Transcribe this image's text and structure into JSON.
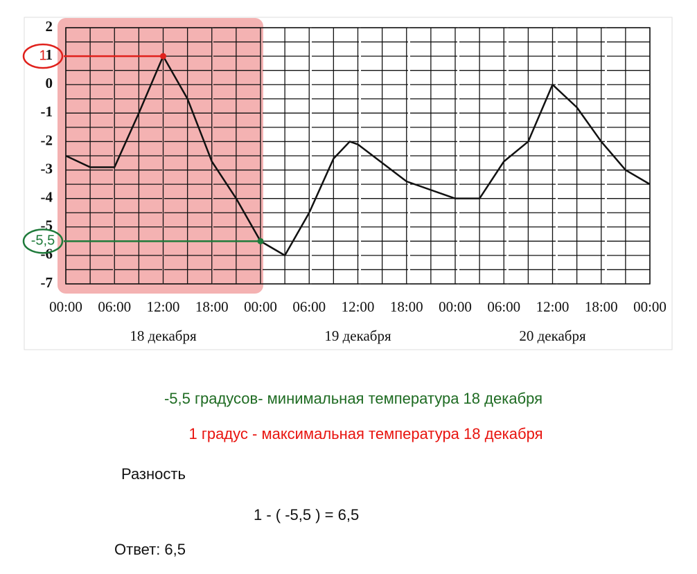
{
  "chart_data": {
    "type": "line",
    "x": [
      0,
      3,
      6,
      9,
      12,
      15,
      18,
      21,
      24,
      27,
      30,
      33,
      35,
      36,
      42,
      48,
      51,
      54,
      57,
      60,
      63,
      66,
      69,
      72
    ],
    "series": [
      {
        "color": "#111111",
        "values": [
          -2.5,
          -2.9,
          -2.9,
          -1,
          1,
          -0.5,
          -2.7,
          -4,
          -5.5,
          -6,
          -4.5,
          -2.6,
          -2,
          -2.1,
          -3.4,
          -4,
          -4,
          -2.7,
          -2,
          0,
          -0.8,
          -2,
          -3,
          -3.5
        ]
      }
    ],
    "xlim": [
      0,
      72
    ],
    "xticks": [
      {
        "value": 0,
        "label": "00:00"
      },
      {
        "value": 6,
        "label": "06:00"
      },
      {
        "value": 12,
        "label": "12:00"
      },
      {
        "value": 18,
        "label": "18:00"
      },
      {
        "value": 24,
        "label": "00:00"
      },
      {
        "value": 30,
        "label": "06:00"
      },
      {
        "value": 36,
        "label": "12:00"
      },
      {
        "value": 42,
        "label": "18:00"
      },
      {
        "value": 48,
        "label": "00:00"
      },
      {
        "value": 54,
        "label": "06:00"
      },
      {
        "value": 60,
        "label": "12:00"
      },
      {
        "value": 66,
        "label": "18:00"
      },
      {
        "value": 72,
        "label": "00:00"
      }
    ],
    "days": [
      "18 декабря",
      "19 декабря",
      "20 декабря"
    ],
    "ylim": [
      -7,
      2
    ],
    "yticks": [
      -7,
      -6,
      -5,
      -4,
      -3,
      -2,
      -1,
      0,
      1,
      2
    ],
    "grid": true,
    "highlight": {
      "x": [
        0,
        24
      ],
      "color": "#f2a5a5"
    },
    "annotations": [
      {
        "label": "1",
        "x": 12,
        "y": 1,
        "color": "#e0201b"
      },
      {
        "label": "-5,5",
        "x": 24,
        "y": -5.5,
        "color": "#1e7a3a"
      }
    ]
  },
  "solution": [
    {
      "text": "-5,5 градусов- минимальная температура 18 декабря",
      "color": "#1e6b22"
    },
    {
      "text": "1 градус - максимальная температура 18 декабря",
      "color": "#e8140f"
    },
    {
      "text": "Разность",
      "color": "#111111"
    },
    {
      "text": "1 - ( -5,5 ) = 6,5",
      "color": "#111111"
    },
    {
      "text": "Ответ: 6,5",
      "color": "#111111"
    }
  ]
}
